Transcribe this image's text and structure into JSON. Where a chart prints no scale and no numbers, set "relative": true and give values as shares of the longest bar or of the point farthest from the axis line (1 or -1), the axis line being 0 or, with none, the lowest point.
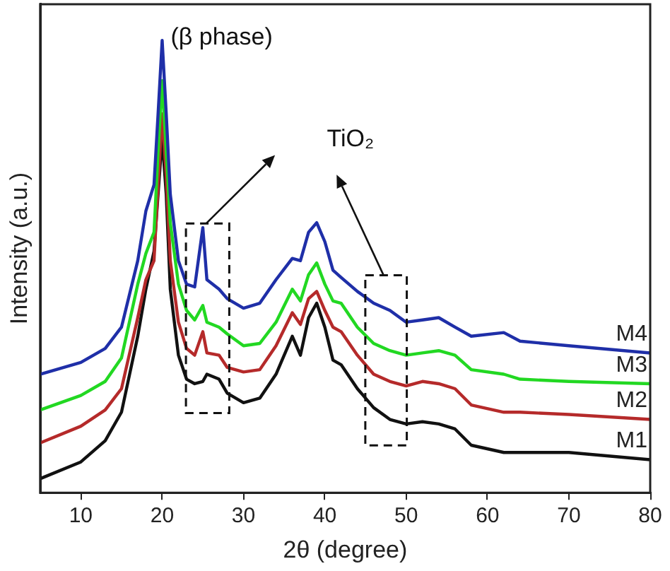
{
  "chart_data": {
    "type": "line",
    "xlabel": "2θ (degree)",
    "ylabel": "Intensity (a.u.)",
    "relative": true,
    "xlim": [
      5,
      80
    ],
    "xticks": [
      10,
      20,
      30,
      40,
      50,
      60,
      70,
      80
    ],
    "grid": false,
    "legend": false,
    "marker": "none",
    "line_style": "solid",
    "x": [
      5,
      10,
      13,
      15,
      17,
      18,
      19,
      19.5,
      20,
      20.5,
      21,
      22,
      23,
      24,
      25,
      25.5,
      27,
      28,
      30,
      32,
      34,
      36,
      37,
      38,
      39,
      40,
      41,
      42,
      44,
      46,
      48,
      50,
      52,
      54,
      56,
      58,
      62,
      64,
      70,
      80
    ],
    "annotations": [
      {
        "text": "(β phase)",
        "x": 20,
        "y": 1
      },
      "TiO₂"
    ],
    "series": [
      {
        "name": "M4",
        "color": "#1f2fa8",
        "values": [
          0.262,
          0.288,
          0.319,
          0.366,
          0.513,
          0.623,
          0.681,
          0.838,
          1.0,
          0.838,
          0.66,
          0.513,
          0.461,
          0.455,
          0.586,
          0.471,
          0.45,
          0.429,
          0.408,
          0.419,
          0.471,
          0.518,
          0.513,
          0.576,
          0.597,
          0.555,
          0.492,
          0.476,
          0.445,
          0.419,
          0.403,
          0.377,
          0.382,
          0.387,
          0.366,
          0.346,
          0.354,
          0.335,
          0.325,
          0.309
        ]
      },
      {
        "name": "M3",
        "color": "#22d822",
        "values": [
          0.183,
          0.215,
          0.246,
          0.298,
          0.461,
          0.529,
          0.576,
          0.754,
          0.911,
          0.754,
          0.597,
          0.461,
          0.403,
          0.382,
          0.414,
          0.377,
          0.366,
          0.351,
          0.325,
          0.33,
          0.377,
          0.45,
          0.424,
          0.482,
          0.508,
          0.461,
          0.424,
          0.419,
          0.366,
          0.33,
          0.314,
          0.304,
          0.309,
          0.314,
          0.304,
          0.272,
          0.262,
          0.251,
          0.246,
          0.241
        ]
      },
      {
        "name": "M2",
        "color": "#b52a2a",
        "values": [
          0.11,
          0.147,
          0.183,
          0.23,
          0.387,
          0.471,
          0.513,
          0.681,
          0.838,
          0.702,
          0.513,
          0.377,
          0.319,
          0.304,
          0.356,
          0.309,
          0.304,
          0.277,
          0.267,
          0.272,
          0.325,
          0.398,
          0.372,
          0.429,
          0.445,
          0.403,
          0.366,
          0.356,
          0.304,
          0.262,
          0.246,
          0.236,
          0.246,
          0.241,
          0.23,
          0.194,
          0.178,
          0.178,
          0.173,
          0.162
        ]
      },
      {
        "name": "M1",
        "color": "#111111",
        "values": [
          0.031,
          0.068,
          0.115,
          0.178,
          0.346,
          0.45,
          0.534,
          0.66,
          0.785,
          0.66,
          0.45,
          0.304,
          0.251,
          0.241,
          0.246,
          0.262,
          0.251,
          0.22,
          0.199,
          0.209,
          0.262,
          0.346,
          0.304,
          0.387,
          0.419,
          0.366,
          0.293,
          0.283,
          0.23,
          0.188,
          0.162,
          0.152,
          0.157,
          0.152,
          0.141,
          0.105,
          0.089,
          0.089,
          0.089,
          0.073
        ]
      }
    ]
  }
}
